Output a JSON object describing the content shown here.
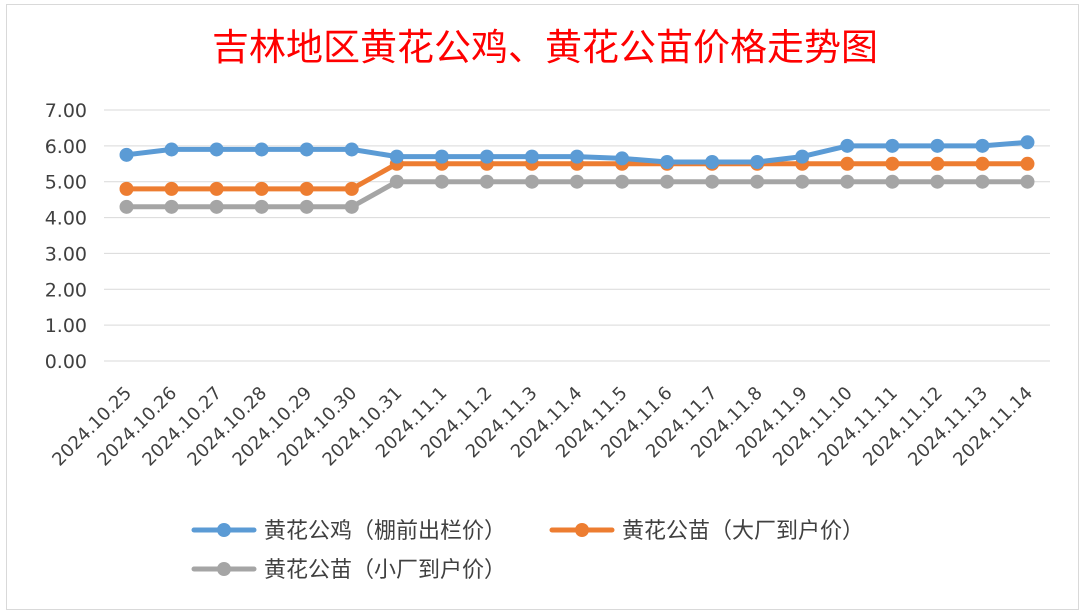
{
  "chart_data": {
    "type": "line",
    "title": "吉林地区黄花公鸡、黄花公苗价格走势图",
    "xlabel": "",
    "ylabel": "",
    "categories": [
      "2024.10.25",
      "2024.10.26",
      "2024.10.27",
      "2024.10.28",
      "2024.10.29",
      "2024.10.30",
      "2024.10.31",
      "2024.11.1",
      "2024.11.2",
      "2024.11.3",
      "2024.11.4",
      "2024.11.5",
      "2024.11.6",
      "2024.11.7",
      "2024.11.8",
      "2024.11.9",
      "2024.11.10",
      "2024.11.11",
      "2024.11.12",
      "2024.11.13",
      "2024.11.14"
    ],
    "ylim": [
      0,
      7
    ],
    "yticks": [
      "0.00",
      "1.00",
      "2.00",
      "3.00",
      "4.00",
      "5.00",
      "6.00",
      "7.00"
    ],
    "grid": true,
    "legend_position": "bottom",
    "series": [
      {
        "name": "黄花公鸡（棚前出栏价）",
        "color": "#5b9bd5",
        "values": [
          5.75,
          5.9,
          5.9,
          5.9,
          5.9,
          5.9,
          5.7,
          5.7,
          5.7,
          5.7,
          5.7,
          5.65,
          5.55,
          5.55,
          5.55,
          5.7,
          6.0,
          6.0,
          6.0,
          6.0,
          6.1
        ]
      },
      {
        "name": "黄花公苗（大厂到户价）",
        "color": "#ed7d31",
        "values": [
          4.8,
          4.8,
          4.8,
          4.8,
          4.8,
          4.8,
          5.5,
          5.5,
          5.5,
          5.5,
          5.5,
          5.5,
          5.5,
          5.5,
          5.5,
          5.5,
          5.5,
          5.5,
          5.5,
          5.5,
          5.5
        ]
      },
      {
        "name": "黄花公苗（小厂到户价）",
        "color": "#a5a5a5",
        "values": [
          4.3,
          4.3,
          4.3,
          4.3,
          4.3,
          4.3,
          5.0,
          5.0,
          5.0,
          5.0,
          5.0,
          5.0,
          5.0,
          5.0,
          5.0,
          5.0,
          5.0,
          5.0,
          5.0,
          5.0,
          5.0
        ]
      }
    ]
  }
}
